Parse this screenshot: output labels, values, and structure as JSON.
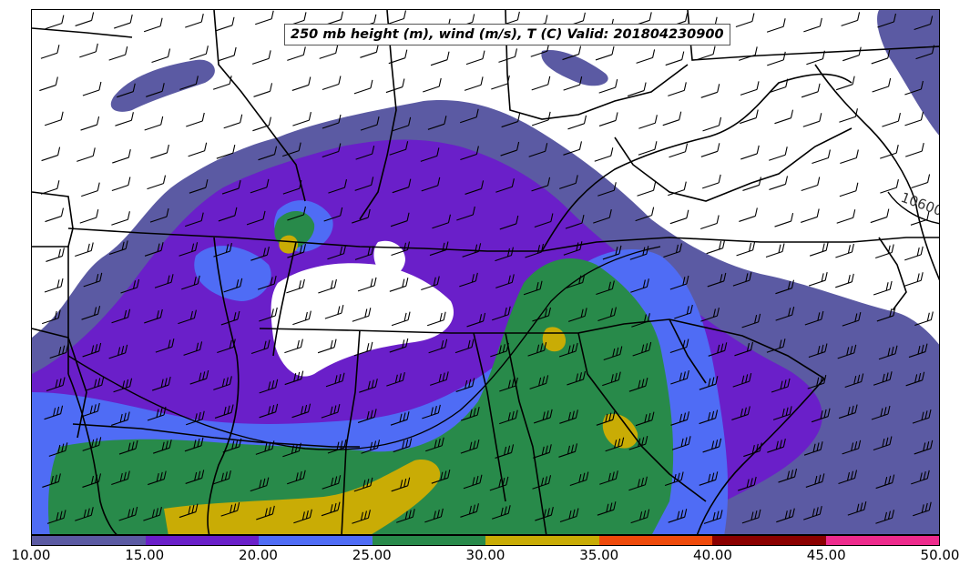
{
  "title": "250 mb height (m), wind (m/s), T (C) Valid: 201804230900",
  "contour_label": "10600",
  "colorbar": {
    "segments": [
      {
        "color": "#5b5aa3"
      },
      {
        "color": "#6a1fc9"
      },
      {
        "color": "#4f6cf5"
      },
      {
        "color": "#288a4a"
      },
      {
        "color": "#c9ac05"
      },
      {
        "color": "#ef4a0b"
      },
      {
        "color": "#8b0000"
      },
      {
        "color": "#ee2b8d"
      }
    ],
    "ticks": [
      "10.00",
      "15.00",
      "20.00",
      "25.00",
      "30.00",
      "35.00",
      "40.00",
      "45.00",
      "50.00"
    ]
  },
  "legend_range": [
    10,
    50
  ]
}
